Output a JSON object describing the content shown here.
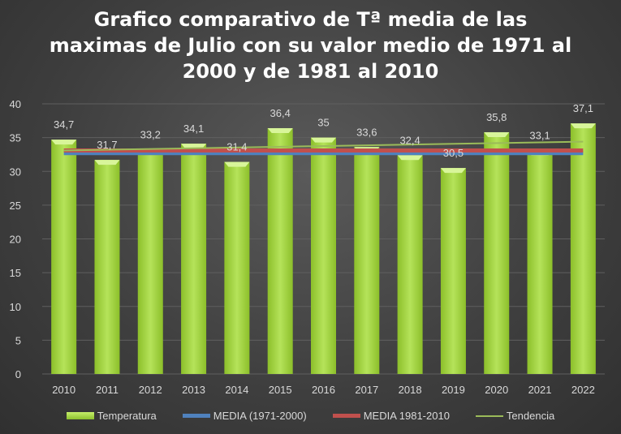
{
  "chart_data": {
    "type": "bar",
    "title_lines": [
      "Grafico comparativo de Tª media de las",
      "maximas de Julio con su valor medio de 1971 al",
      "2000 y de 1981 al 2010"
    ],
    "categories": [
      "2010",
      "2011",
      "2012",
      "2013",
      "2014",
      "2015",
      "2016",
      "2017",
      "2018",
      "2019",
      "2020",
      "2021",
      "2022"
    ],
    "values": [
      34.7,
      31.7,
      33.2,
      34.1,
      31.4,
      36.4,
      35,
      33.6,
      32.4,
      30.5,
      35.8,
      33.1,
      37.1
    ],
    "data_labels": [
      "34,7",
      "31,7",
      "33,2",
      "34,1",
      "31,4",
      "36,4",
      "35",
      "33,6",
      "32,4",
      "30,5",
      "35,8",
      "33,1",
      "37,1"
    ],
    "lines": [
      {
        "name": "MEDIA (1971-2000)",
        "value": 32.7,
        "color": "#4f81bd"
      },
      {
        "name": "MEDIA 1981-2010",
        "value": 33.1,
        "color": "#c0504d"
      },
      {
        "name": "Tendencia",
        "start": 33.1,
        "end": 34.4,
        "color": "#9bbb59"
      }
    ],
    "series_name": "Temperatura",
    "bar_color": "#9acd32",
    "ylim": [
      0,
      40
    ],
    "yticks": [
      0,
      5,
      10,
      15,
      20,
      25,
      30,
      35,
      40
    ],
    "grid": true,
    "legend_position": "bottom"
  }
}
